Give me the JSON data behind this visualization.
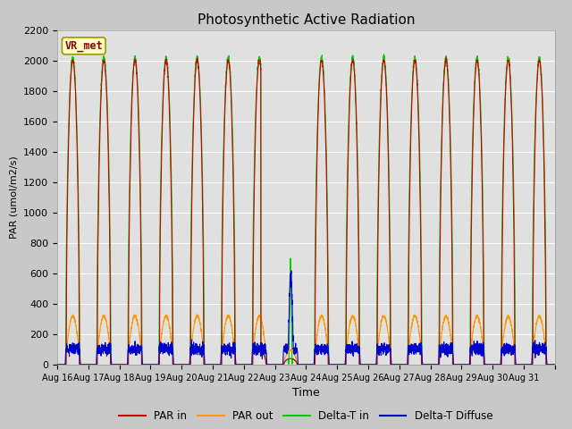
{
  "title": "Photosynthetic Active Radiation",
  "ylabel": "PAR (umol/m2/s)",
  "xlabel": "Time",
  "ylim": [
    0,
    2200
  ],
  "fig_bg_color": "#c8c8c8",
  "plot_bg_color": "#e0e0e0",
  "site_label": "VR_met",
  "legend_entries": [
    "PAR in",
    "PAR out",
    "Delta-T in",
    "Delta-T Diffuse"
  ],
  "legend_colors": [
    "#cc0000",
    "#ff9900",
    "#00cc00",
    "#0000cc"
  ],
  "xtick_labels": [
    "Aug 16",
    "Aug 17",
    "Aug 18",
    "Aug 19",
    "Aug 20",
    "Aug 21",
    "Aug 22",
    "Aug 23",
    "Aug 24",
    "Aug 25",
    "Aug 26",
    "Aug 27",
    "Aug 28",
    "Aug 29",
    "Aug 30",
    "Aug 31"
  ],
  "ytick_values": [
    0,
    200,
    400,
    600,
    800,
    1000,
    1200,
    1400,
    1600,
    1800,
    2000,
    2200
  ],
  "n_days": 16,
  "points_per_day": 288,
  "par_in_max": 2000,
  "par_out_max": 320,
  "delta_t_in_max": 2020,
  "delta_t_diffuse_flat": 120,
  "figsize": [
    6.4,
    4.8
  ],
  "dpi": 100
}
